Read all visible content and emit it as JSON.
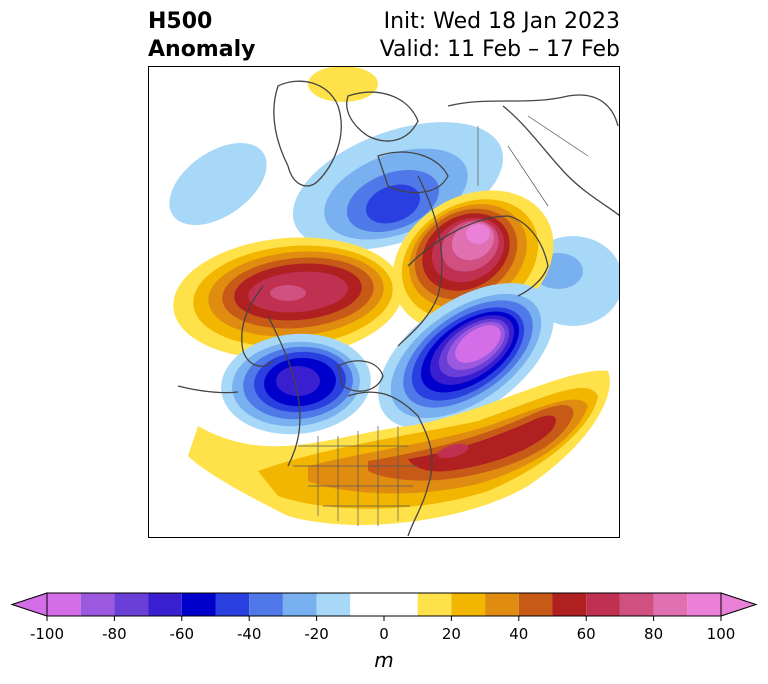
{
  "title": {
    "left_line1": "H500",
    "left_line2": "Anomaly",
    "right_line1": "Init: Wed 18 Jan 2023",
    "right_line2": "Valid: 11 Feb – 17 Feb"
  },
  "colorbar": {
    "unit": "m",
    "ticks": [
      "-100",
      "-80",
      "-60",
      "-40",
      "-20",
      "0",
      "20",
      "40",
      "60",
      "80",
      "100"
    ],
    "tick_values": [
      -100,
      -80,
      -60,
      -40,
      -20,
      0,
      20,
      40,
      60,
      80,
      100
    ],
    "levels": [
      -100,
      -90,
      -80,
      -70,
      -60,
      -50,
      -40,
      -30,
      -20,
      -10,
      10,
      20,
      30,
      40,
      50,
      60,
      70,
      80,
      90,
      100
    ],
    "colors": [
      "#d36ee8",
      "#9b59e0",
      "#6a3fd8",
      "#3a1fd0",
      "#0000cc",
      "#2a3fe0",
      "#4f78e8",
      "#78b0f0",
      "#a8d8f8",
      "#ffffff",
      "#ffe14a",
      "#f2b600",
      "#e08c10",
      "#c85a18",
      "#b02020",
      "#c03050",
      "#d05080",
      "#e070b0",
      "#ea80d8"
    ],
    "under_color": "#d36ee8",
    "over_color": "#ea80d8"
  },
  "map": {
    "anomalies": [
      {
        "name": "pac-low-west",
        "value": -15
      },
      {
        "name": "pac-ridge",
        "value": 55
      },
      {
        "name": "wcan-trough",
        "value": -65
      },
      {
        "name": "atl-ridge",
        "value": 60
      },
      {
        "name": "ne-trough",
        "value": -90
      },
      {
        "name": "siberia-ridge",
        "value": 95
      },
      {
        "name": "arctic-trough",
        "value": -55
      },
      {
        "name": "eur-low",
        "value": -20
      },
      {
        "name": "arctic-top-ridge",
        "value": 15
      }
    ]
  }
}
